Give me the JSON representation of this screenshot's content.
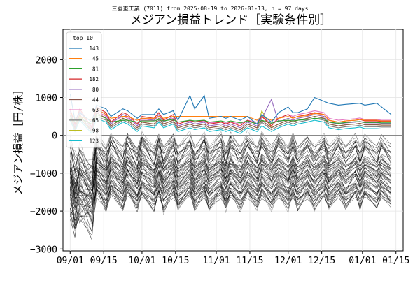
{
  "chart_data": {
    "type": "line",
    "suptitle": "三菱重工業 (7011) from 2025-08-19 to 2026-01-13, n = 97 days",
    "title": "メジアン損益トレンド［実験条件別］",
    "xlabel": "",
    "ylabel": "メジアン損益［円/株］",
    "x_tick_labels": [
      "09/01",
      "09/15",
      "10/01",
      "10/15",
      "11/01",
      "11/15",
      "12/01",
      "12/15",
      "01/01",
      "01/15"
    ],
    "x_tick_dates": [
      "2025-09-01",
      "2025-09-15",
      "2025-10-01",
      "2025-10-15",
      "2025-11-01",
      "2025-11-15",
      "2025-12-01",
      "2025-12-15",
      "2026-01-01",
      "2026-01-15"
    ],
    "xlim": [
      "2025-08-29",
      "2026-01-18"
    ],
    "ylim": [
      -3050,
      2800
    ],
    "y_ticks": [
      2000,
      1000,
      0,
      -1000,
      -2000,
      -3000
    ],
    "y_tick_labels": [
      "2000",
      "1000",
      "0",
      "−1000",
      "−2000",
      "−3000"
    ],
    "grid": true,
    "zero_line": true,
    "legend": {
      "title": "top 10",
      "placement": "top-left"
    },
    "series": [
      {
        "name": "143",
        "color": "#1f77b4",
        "values": [
          1100,
          400,
          600,
          350,
          800,
          700,
          500,
          700,
          650,
          450,
          550,
          550,
          700,
          550,
          650,
          400,
          1050,
          700,
          1050,
          450,
          500,
          450,
          500,
          400,
          500,
          300,
          550,
          350,
          600,
          750,
          600,
          600,
          700,
          1000,
          900,
          850,
          800,
          820,
          840,
          850,
          800,
          850,
          750,
          550
        ]
      },
      {
        "name": "45",
        "color": "#ff7f0e",
        "values": [
          600,
          450,
          500,
          400,
          700,
          550,
          450,
          500,
          500,
          400,
          450,
          450,
          500,
          450,
          500,
          500,
          500,
          500,
          500,
          500,
          500,
          500,
          500,
          500,
          500,
          400,
          500,
          400,
          450,
          500,
          450,
          500,
          520,
          580,
          550,
          400,
          350,
          380,
          400,
          420,
          400,
          400,
          380,
          380
        ]
      },
      {
        "name": "81",
        "color": "#2ca02c",
        "values": [
          500,
          350,
          450,
          300,
          550,
          450,
          350,
          400,
          400,
          350,
          380,
          380,
          420,
          380,
          420,
          350,
          400,
          380,
          400,
          350,
          380,
          350,
          380,
          330,
          380,
          300,
          400,
          320,
          380,
          400,
          380,
          400,
          420,
          450,
          430,
          350,
          320,
          340,
          360,
          360,
          340,
          340,
          330,
          330
        ]
      },
      {
        "name": "182",
        "color": "#d62728",
        "values": [
          700,
          300,
          700,
          200,
          750,
          600,
          350,
          600,
          550,
          300,
          500,
          450,
          600,
          400,
          550,
          300,
          400,
          350,
          400,
          300,
          350,
          300,
          350,
          250,
          400,
          300,
          500,
          250,
          450,
          550,
          450,
          500,
          550,
          600,
          550,
          400,
          350,
          380,
          400,
          420,
          380,
          380,
          370,
          370
        ]
      },
      {
        "name": "80",
        "color": "#9467bd",
        "values": [
          650,
          250,
          650,
          150,
          700,
          550,
          300,
          550,
          500,
          250,
          450,
          400,
          550,
          350,
          500,
          250,
          350,
          300,
          350,
          250,
          300,
          250,
          300,
          200,
          350,
          250,
          450,
          950,
          350,
          450,
          400,
          450,
          500,
          550,
          500,
          350,
          300,
          330,
          350,
          370,
          330,
          330,
          320,
          320
        ]
      },
      {
        "name": "44",
        "color": "#8c564b",
        "values": [
          550,
          200,
          550,
          100,
          600,
          450,
          250,
          450,
          400,
          200,
          350,
          300,
          450,
          300,
          400,
          200,
          300,
          250,
          300,
          200,
          250,
          200,
          250,
          150,
          300,
          200,
          400,
          200,
          300,
          400,
          350,
          400,
          450,
          500,
          450,
          300,
          250,
          280,
          300,
          320,
          280,
          280,
          270,
          270
        ]
      },
      {
        "name": "63",
        "color": "#e377c2",
        "values": [
          600,
          300,
          600,
          250,
          650,
          500,
          350,
          500,
          450,
          300,
          400,
          400,
          500,
          380,
          450,
          350,
          380,
          350,
          380,
          330,
          350,
          320,
          350,
          300,
          400,
          350,
          500,
          300,
          450,
          550,
          500,
          550,
          600,
          650,
          600,
          450,
          400,
          420,
          440,
          460,
          420,
          420,
          400,
          400
        ]
      },
      {
        "name": "65",
        "color": "#7f7f7f",
        "values": [
          450,
          150,
          450,
          100,
          500,
          400,
          200,
          400,
          350,
          150,
          300,
          250,
          400,
          250,
          350,
          150,
          250,
          200,
          250,
          150,
          200,
          150,
          200,
          100,
          250,
          150,
          350,
          150,
          250,
          350,
          300,
          350,
          400,
          450,
          400,
          250,
          200,
          230,
          250,
          270,
          230,
          230,
          220,
          220
        ]
      },
      {
        "name": "98",
        "color": "#bcbd22",
        "values": [
          500,
          200,
          500,
          150,
          550,
          450,
          250,
          450,
          400,
          200,
          350,
          300,
          450,
          300,
          400,
          200,
          300,
          250,
          300,
          200,
          250,
          200,
          250,
          150,
          300,
          200,
          650,
          200,
          300,
          400,
          350,
          400,
          450,
          500,
          450,
          300,
          250,
          280,
          300,
          320,
          280,
          280,
          270,
          270
        ]
      },
      {
        "name": "123",
        "color": "#17becf",
        "values": [
          400,
          100,
          400,
          50,
          450,
          350,
          150,
          350,
          300,
          100,
          250,
          200,
          350,
          200,
          300,
          100,
          200,
          150,
          200,
          100,
          150,
          100,
          150,
          50,
          200,
          100,
          250,
          100,
          200,
          300,
          250,
          300,
          350,
          400,
          350,
          200,
          150,
          180,
          200,
          220,
          180,
          180,
          170,
          170
        ]
      }
    ]
  }
}
